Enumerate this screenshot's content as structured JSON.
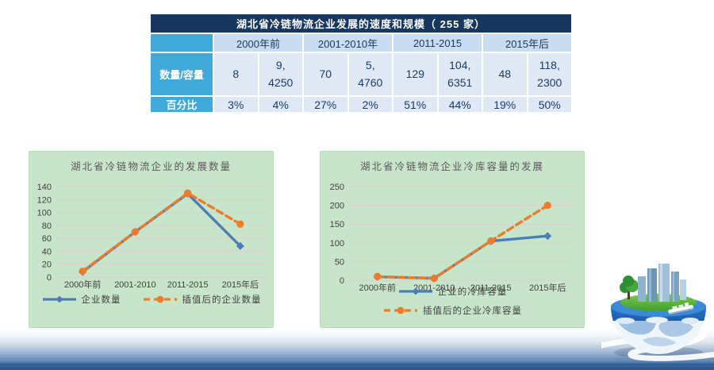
{
  "table": {
    "title": "湖北省冷链物流企业发展的速度和规模（ 255 家）",
    "col_groups": [
      "2000年前",
      "2001-2010年",
      "2011-2015",
      "2015年后"
    ],
    "rows": [
      {
        "label": "数量/容量",
        "cells": [
          "8",
          "9,\n4250",
          "70",
          "5,\n4760",
          "129",
          "104,\n6351",
          "48",
          "118,\n2300"
        ]
      },
      {
        "label": "百分比",
        "cells": [
          "3%",
          "4%",
          "27%",
          "2%",
          "51%",
          "44%",
          "19%",
          "50%"
        ]
      }
    ]
  },
  "chart_data": [
    {
      "type": "line",
      "title": "湖北省冷链物流企业的发展数量",
      "categories": [
        "2000年前",
        "2001-2010",
        "2011-2015",
        "2015年后"
      ],
      "series": [
        {
          "name": "企业数量",
          "values": [
            8,
            70,
            129,
            48
          ],
          "color": "#4a7ebb",
          "style": "solid",
          "marker": "diamond"
        },
        {
          "name": "插值后的企业数量",
          "values": [
            9,
            70,
            130,
            82
          ],
          "color": "#ee7b2c",
          "style": "dashed",
          "marker": "circle"
        }
      ],
      "ylim": [
        0,
        140
      ],
      "ytick": 20,
      "grid": true,
      "legend_position": "bottom-single-row"
    },
    {
      "type": "line",
      "title": "湖北省冷链物流企业冷库容量的发展",
      "categories": [
        "2000年前",
        "2001-2010",
        "2011-2015",
        "2015年后"
      ],
      "series": [
        {
          "name": "企业的冷库容量",
          "values": [
            9.4,
            5.5,
            104.6,
            118.2
          ],
          "color": "#4a7ebb",
          "style": "solid",
          "marker": "diamond"
        },
        {
          "name": "插值后的企业冷库容量",
          "values": [
            10,
            5,
            105,
            200
          ],
          "color": "#ee7b2c",
          "style": "dashed",
          "marker": "circle"
        }
      ],
      "ylim": [
        0,
        250
      ],
      "ytick": 50,
      "grid": true,
      "legend_position": "bottom-two-rows"
    }
  ],
  "colors": {
    "table_title_bg": "#17375e",
    "table_label_bg": "#3fa9dc",
    "table_group_bg": "#c9ddf2",
    "table_cell_bg": "#dfe9f6",
    "panel_bg": "#c7e5c8",
    "gridline": "#dccfcf",
    "axis_text": "#404040",
    "ocean_deep": "#27528a"
  }
}
